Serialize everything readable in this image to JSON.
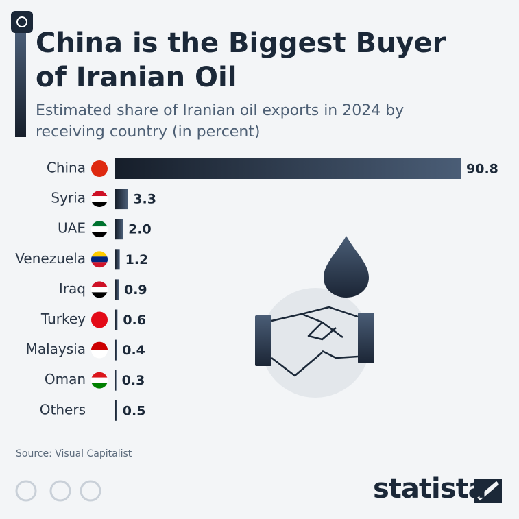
{
  "chart_data": {
    "type": "bar",
    "orientation": "horizontal",
    "title": "China is the Biggest Buyer of Iranian Oil",
    "subtitle": "Estimated share of Iranian oil exports in 2024 by receiving country (in percent)",
    "categories": [
      "China",
      "Syria",
      "UAE",
      "Venezuela",
      "Iraq",
      "Turkey",
      "Malaysia",
      "Oman",
      "Others"
    ],
    "values": [
      90.8,
      3.3,
      2.0,
      1.2,
      0.9,
      0.6,
      0.4,
      0.3,
      0.5
    ],
    "value_labels": [
      "90.8",
      "3.3",
      "2.0",
      "1.2",
      "0.9",
      "0.6",
      "0.4",
      "0.3",
      "0.5"
    ],
    "color": "#2b3a4e",
    "source": "Source: Visual Capitalist",
    "brand": "statista"
  }
}
